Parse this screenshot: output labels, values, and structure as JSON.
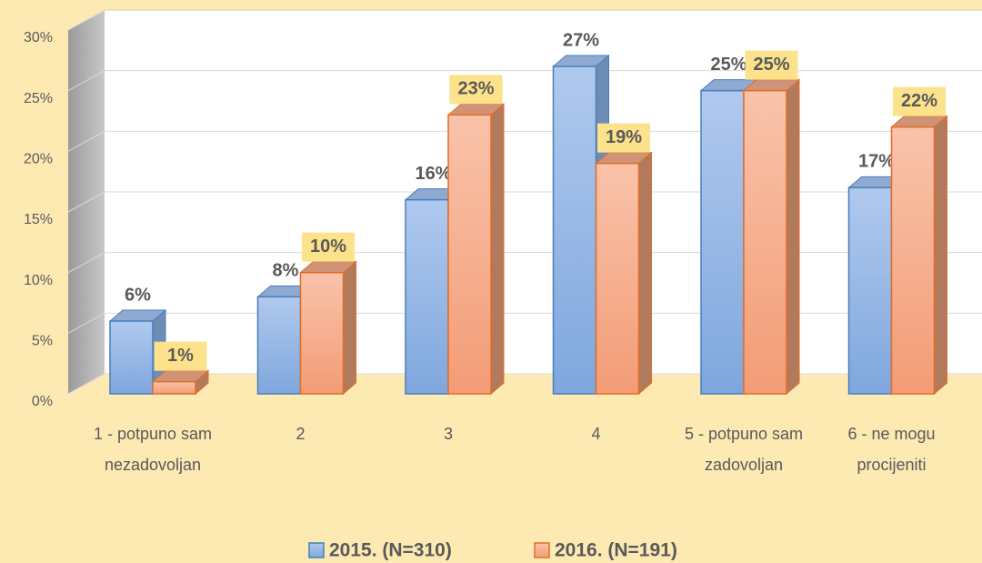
{
  "chart_data": {
    "type": "bar3d",
    "categories": [
      "1 - potpuno sam nezadovoljan",
      "2",
      "3",
      "4",
      "5 - potpuno sam zadovoljan",
      "6 - ne mogu procijeniti"
    ],
    "series": [
      {
        "name": "2015. (N=310)",
        "color": "#8fb2e3",
        "values": [
          6,
          8,
          16,
          27,
          25,
          17
        ],
        "value_labels": [
          "6%",
          "8%",
          "16%",
          "27%",
          "25%",
          "17%"
        ]
      },
      {
        "name": "2016. (N=191)",
        "color": "#f7ae8c",
        "values": [
          1,
          10,
          23,
          19,
          25,
          22
        ],
        "value_labels": [
          "1%",
          "10%",
          "23%",
          "19%",
          "25%",
          "22%"
        ]
      }
    ],
    "ylim": [
      0,
      30
    ],
    "yticks": [
      {
        "value": 0,
        "label": "0%"
      },
      {
        "value": 5,
        "label": "5%"
      },
      {
        "value": 10,
        "label": "10%"
      },
      {
        "value": 15,
        "label": "15%"
      },
      {
        "value": 20,
        "label": "20%"
      },
      {
        "value": 25,
        "label": "25%"
      },
      {
        "value": 30,
        "label": "30%"
      }
    ],
    "grid": true,
    "legend": "bottom"
  }
}
